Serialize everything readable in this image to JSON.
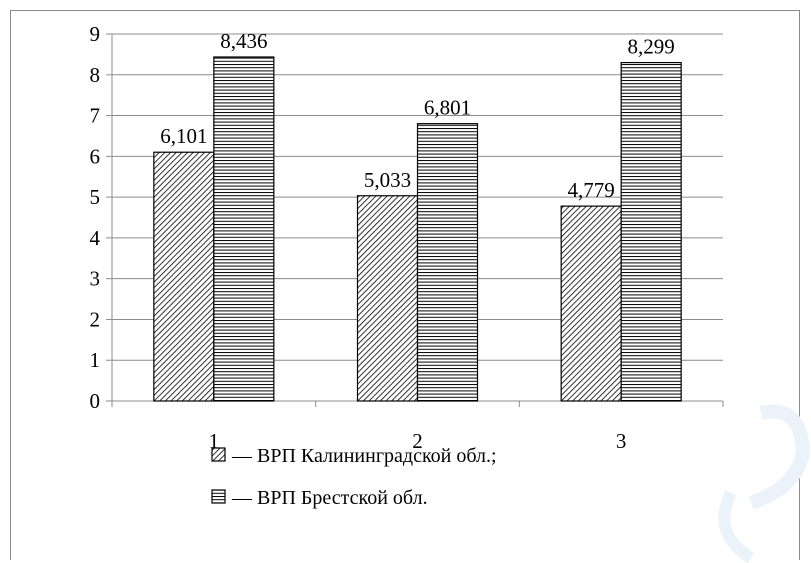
{
  "chart_data": {
    "type": "bar",
    "categories": [
      "1",
      "2",
      "3"
    ],
    "series": [
      {
        "name": "— ВРП Калининградской обл.;",
        "values": [
          6.101,
          5.033,
          4.779
        ],
        "labels": [
          "6,101",
          "5,033",
          "4,779"
        ],
        "pattern": "diagonal-hatch"
      },
      {
        "name": "— ВРП Брестской обл.",
        "values": [
          8.436,
          6.801,
          8.299
        ],
        "labels": [
          "8,436",
          "6,801",
          "8,299"
        ],
        "pattern": "horizontal-hatch"
      }
    ],
    "ylim": [
      0,
      9
    ],
    "yticks": [
      "0",
      "1",
      "2",
      "3",
      "4",
      "5",
      "6",
      "7",
      "8",
      "9"
    ],
    "grid": true,
    "legend_position": "bottom"
  },
  "colors": {
    "bar_fill": "#ffffff",
    "bar_stroke": "#000000",
    "grid": "#8c8c8c",
    "watermark": "#ecf2fa"
  }
}
